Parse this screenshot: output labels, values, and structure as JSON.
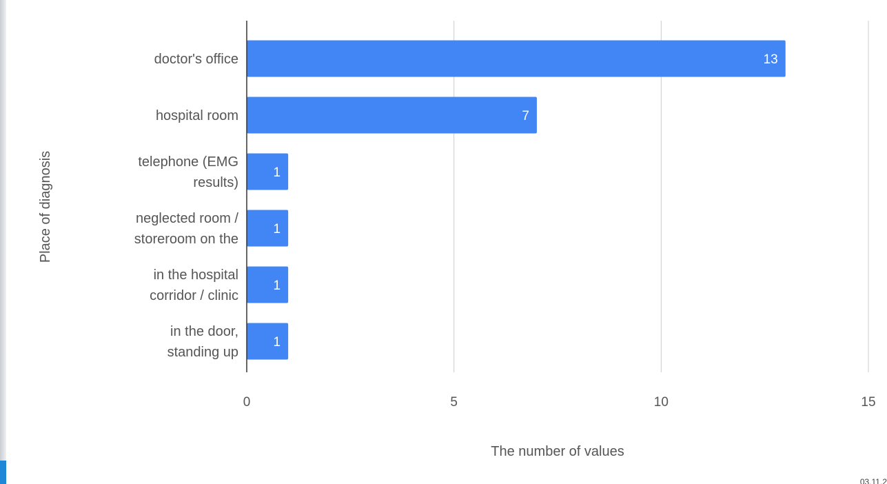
{
  "chart_data": {
    "type": "bar",
    "orientation": "horizontal",
    "categories": [
      [
        "doctor's office"
      ],
      [
        "hospital room"
      ],
      [
        "telephone (EMG",
        "results)"
      ],
      [
        "neglected room /",
        "storeroom on the"
      ],
      [
        "in the hospital",
        "corridor / clinic"
      ],
      [
        "in the door,",
        "standing up"
      ]
    ],
    "values": [
      13,
      7,
      1,
      1,
      1,
      1
    ],
    "xlabel": "The number of values",
    "ylabel": "Place of diagnosis",
    "xlim": [
      0,
      15
    ],
    "xticks": [
      0,
      5,
      10,
      15
    ],
    "grid": true,
    "data_labels": true,
    "bar_color": "#4285f4",
    "grid_color": "#cccccc",
    "axis_color": "#333333",
    "text_color": "#555555",
    "label_color": "#ffffff"
  },
  "footer": {
    "partial_text": "03.11.2"
  }
}
